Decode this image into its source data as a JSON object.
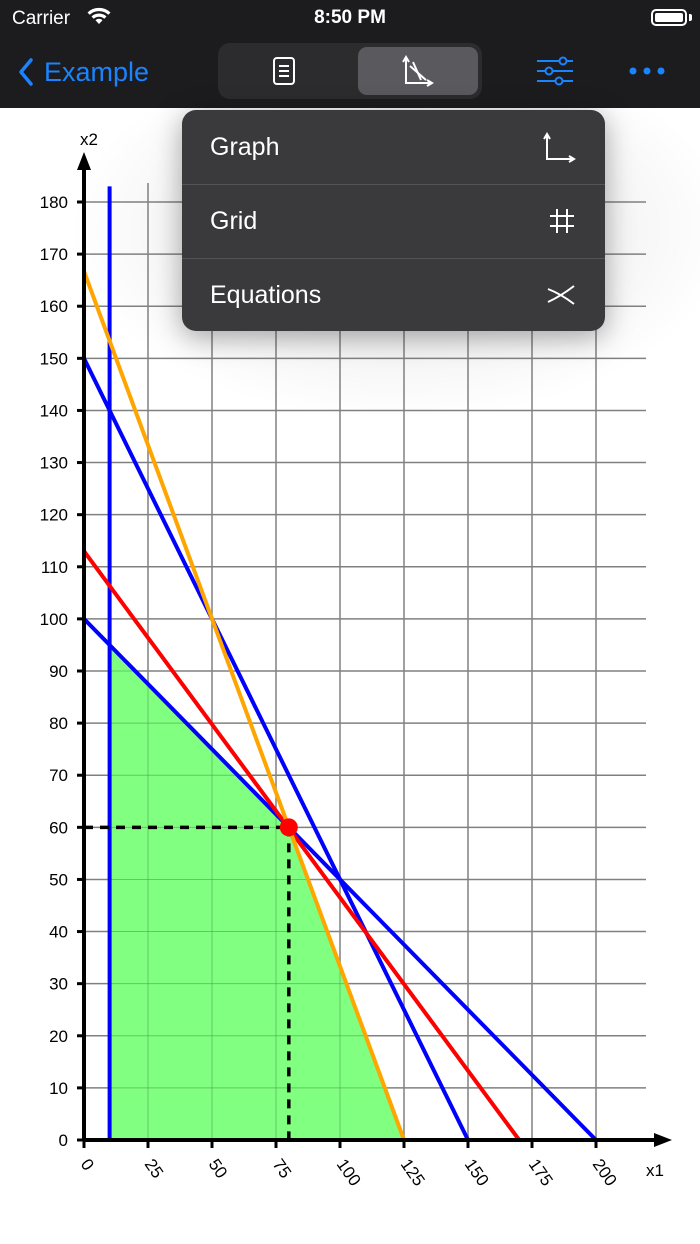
{
  "status_bar": {
    "carrier": "Carrier",
    "time": "8:50 PM"
  },
  "nav": {
    "back_label": "Example",
    "segments": [
      {
        "name": "document",
        "icon": "document-icon",
        "selected": false
      },
      {
        "name": "graph",
        "icon": "graph-icon",
        "selected": true
      }
    ],
    "right_icons": [
      "sliders-icon",
      "more-icon"
    ],
    "accent_color": "#1a84ff"
  },
  "menu": {
    "items": [
      {
        "label": "Graph",
        "icon": "axes-icon"
      },
      {
        "label": "Grid",
        "icon": "grid-hash-icon"
      },
      {
        "label": "Equations",
        "icon": "equations-icon"
      }
    ]
  },
  "chart_data": {
    "type": "line",
    "xlabel": "x1",
    "ylabel": "x2",
    "xlim": [
      0,
      200
    ],
    "ylim": [
      0,
      180
    ],
    "x_ticks": [
      0,
      25,
      50,
      75,
      100,
      125,
      150,
      175,
      200
    ],
    "y_ticks": [
      0,
      10,
      20,
      30,
      40,
      50,
      60,
      70,
      80,
      90,
      100,
      110,
      120,
      130,
      140,
      150,
      160,
      170,
      180
    ],
    "grid": true,
    "series": [
      {
        "color": "#0000ff",
        "points": [
          [
            10,
            0
          ],
          [
            10,
            183
          ]
        ]
      },
      {
        "color": "#0000ff",
        "points": [
          [
            0,
            100
          ],
          [
            200,
            0
          ]
        ]
      },
      {
        "color": "#0000ff",
        "points": [
          [
            0,
            150
          ],
          [
            150,
            0
          ]
        ]
      },
      {
        "color": "#ff0000",
        "points": [
          [
            0,
            113
          ],
          [
            170,
            0
          ]
        ]
      },
      {
        "color": "#ffa500",
        "points": [
          [
            0,
            166.7
          ],
          [
            125,
            0
          ]
        ]
      }
    ],
    "feasible_region": {
      "color": "#80ff80",
      "points": [
        [
          10,
          0
        ],
        [
          125,
          0
        ],
        [
          80,
          60
        ],
        [
          10,
          95
        ]
      ]
    },
    "optimum": {
      "x": 80,
      "y": 60,
      "color": "#ff0000"
    }
  }
}
